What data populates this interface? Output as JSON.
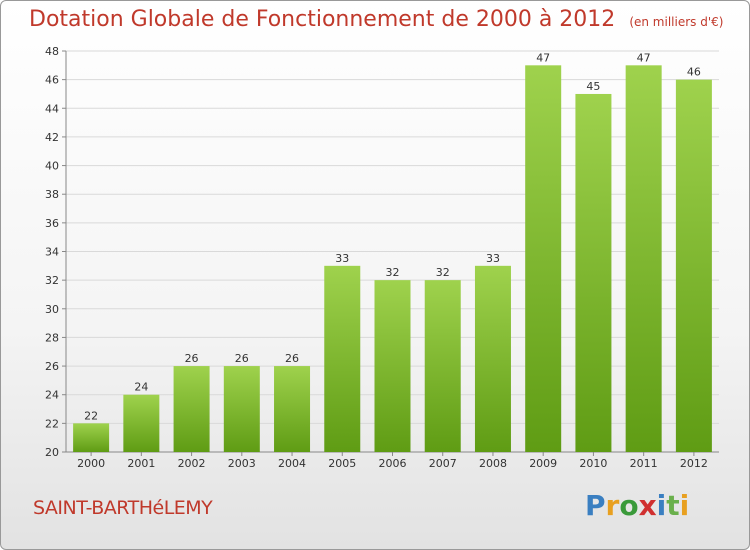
{
  "title": "Dotation Globale de Fonctionnement de 2000 à 2012",
  "unit": "(en milliers d'€)",
  "commune": "SAINT-BARTHéLEMY",
  "logo": {
    "letters": [
      "P",
      "r",
      "o",
      "x",
      "i",
      "t",
      "i"
    ],
    "colors": [
      "#3a7fc1",
      "#e8a020",
      "#3a9a3a",
      "#d03030",
      "#3a7fc1",
      "#6ab04c",
      "#e8a020"
    ]
  },
  "colors": {
    "title": "#c0392b",
    "bar_light": "#9fd24d",
    "bar_dark": "#5f9c14",
    "grid": "#d9d9d9",
    "axis": "#888888"
  },
  "chart_data": {
    "type": "bar",
    "categories": [
      "2000",
      "2001",
      "2002",
      "2003",
      "2004",
      "2005",
      "2006",
      "2007",
      "2008",
      "2009",
      "2010",
      "2011",
      "2012"
    ],
    "values": [
      22,
      24,
      26,
      26,
      26,
      33,
      32,
      32,
      33,
      47,
      45,
      47,
      46
    ],
    "ylim": [
      20,
      48
    ],
    "yticks": [
      20,
      22,
      24,
      26,
      28,
      30,
      32,
      34,
      36,
      38,
      40,
      42,
      44,
      46,
      48
    ],
    "grid": true
  }
}
